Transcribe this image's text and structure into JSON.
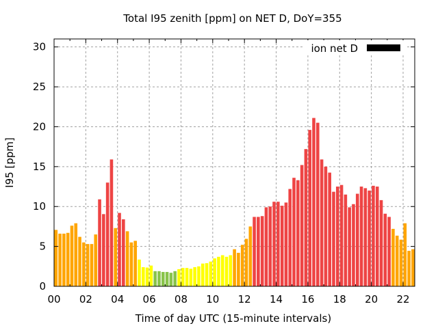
{
  "chart_data": {
    "type": "bar",
    "title": "Total I95 zenith [ppm] on NET D, DoY=355",
    "xlabel": "Time of day UTC (15-minute intervals)",
    "ylabel": "I95 [ppm]",
    "ylim": [
      0,
      31
    ],
    "xlim_hours": [
      0,
      22.75
    ],
    "yticks": [
      0,
      5,
      10,
      15,
      20,
      25,
      30
    ],
    "xticks": [
      {
        "hour": 0,
        "label": "00"
      },
      {
        "hour": 2,
        "label": "02"
      },
      {
        "hour": 4,
        "label": "04"
      },
      {
        "hour": 6,
        "label": "06"
      },
      {
        "hour": 8,
        "label": "08"
      },
      {
        "hour": 10,
        "label": "10"
      },
      {
        "hour": 12,
        "label": "12"
      },
      {
        "hour": 14,
        "label": "14"
      },
      {
        "hour": 16,
        "label": "16"
      },
      {
        "hour": 18,
        "label": "18"
      },
      {
        "hour": 20,
        "label": "20"
      },
      {
        "hour": 22,
        "label": "22"
      }
    ],
    "grid": true,
    "legend": {
      "label": "ion net D",
      "position": "top-right",
      "color": "#000000"
    },
    "interval_minutes": 15,
    "color_levels": {
      "green": "#88c34a",
      "yellow": "#ffff00",
      "orange": "#ffa500",
      "red": "#ee4444"
    },
    "values": [
      7.07,
      6.6,
      6.6,
      6.7,
      7.6,
      7.9,
      6.2,
      5.5,
      5.3,
      5.3,
      6.5,
      10.9,
      9.05,
      13.0,
      15.9,
      7.3,
      9.2,
      8.4,
      6.9,
      5.5,
      5.7,
      3.35,
      2.4,
      2.35,
      2.6,
      1.9,
      1.9,
      1.8,
      1.8,
      1.7,
      1.9,
      2.15,
      2.3,
      2.3,
      2.2,
      2.4,
      2.5,
      2.85,
      2.9,
      3.1,
      3.5,
      3.7,
      3.9,
      3.7,
      3.9,
      4.65,
      4.2,
      5.2,
      5.95,
      7.5,
      8.7,
      8.7,
      8.8,
      9.9,
      10.0,
      10.6,
      10.6,
      10.1,
      10.5,
      12.2,
      13.6,
      13.3,
      15.2,
      17.2,
      19.6,
      21.1,
      20.5,
      15.9,
      15.0,
      14.25,
      11.85,
      12.5,
      12.7,
      11.5,
      9.9,
      10.3,
      11.6,
      12.5,
      12.3,
      12.0,
      12.6,
      12.5,
      10.8,
      9.1,
      8.7,
      7.2,
      6.35,
      5.85,
      7.9,
      4.45,
      4.65,
      4.8
    ],
    "levels": [
      "orange",
      "orange",
      "orange",
      "orange",
      "orange",
      "orange",
      "orange",
      "orange",
      "orange",
      "orange",
      "orange",
      "red",
      "red",
      "red",
      "red",
      "orange",
      "red",
      "red",
      "orange",
      "orange",
      "orange",
      "yellow",
      "yellow",
      "yellow",
      "yellow",
      "green",
      "green",
      "green",
      "green",
      "green",
      "green",
      "yellow",
      "yellow",
      "yellow",
      "yellow",
      "yellow",
      "yellow",
      "yellow",
      "yellow",
      "yellow",
      "yellow",
      "yellow",
      "yellow",
      "yellow",
      "yellow",
      "orange",
      "orange",
      "orange",
      "orange",
      "orange",
      "red",
      "red",
      "red",
      "red",
      "red",
      "red",
      "red",
      "red",
      "red",
      "red",
      "red",
      "red",
      "red",
      "red",
      "red",
      "red",
      "red",
      "red",
      "red",
      "red",
      "red",
      "red",
      "red",
      "red",
      "red",
      "red",
      "red",
      "red",
      "red",
      "red",
      "red",
      "red",
      "red",
      "red",
      "red",
      "orange",
      "orange",
      "orange",
      "orange",
      "orange",
      "orange",
      "orange"
    ]
  }
}
